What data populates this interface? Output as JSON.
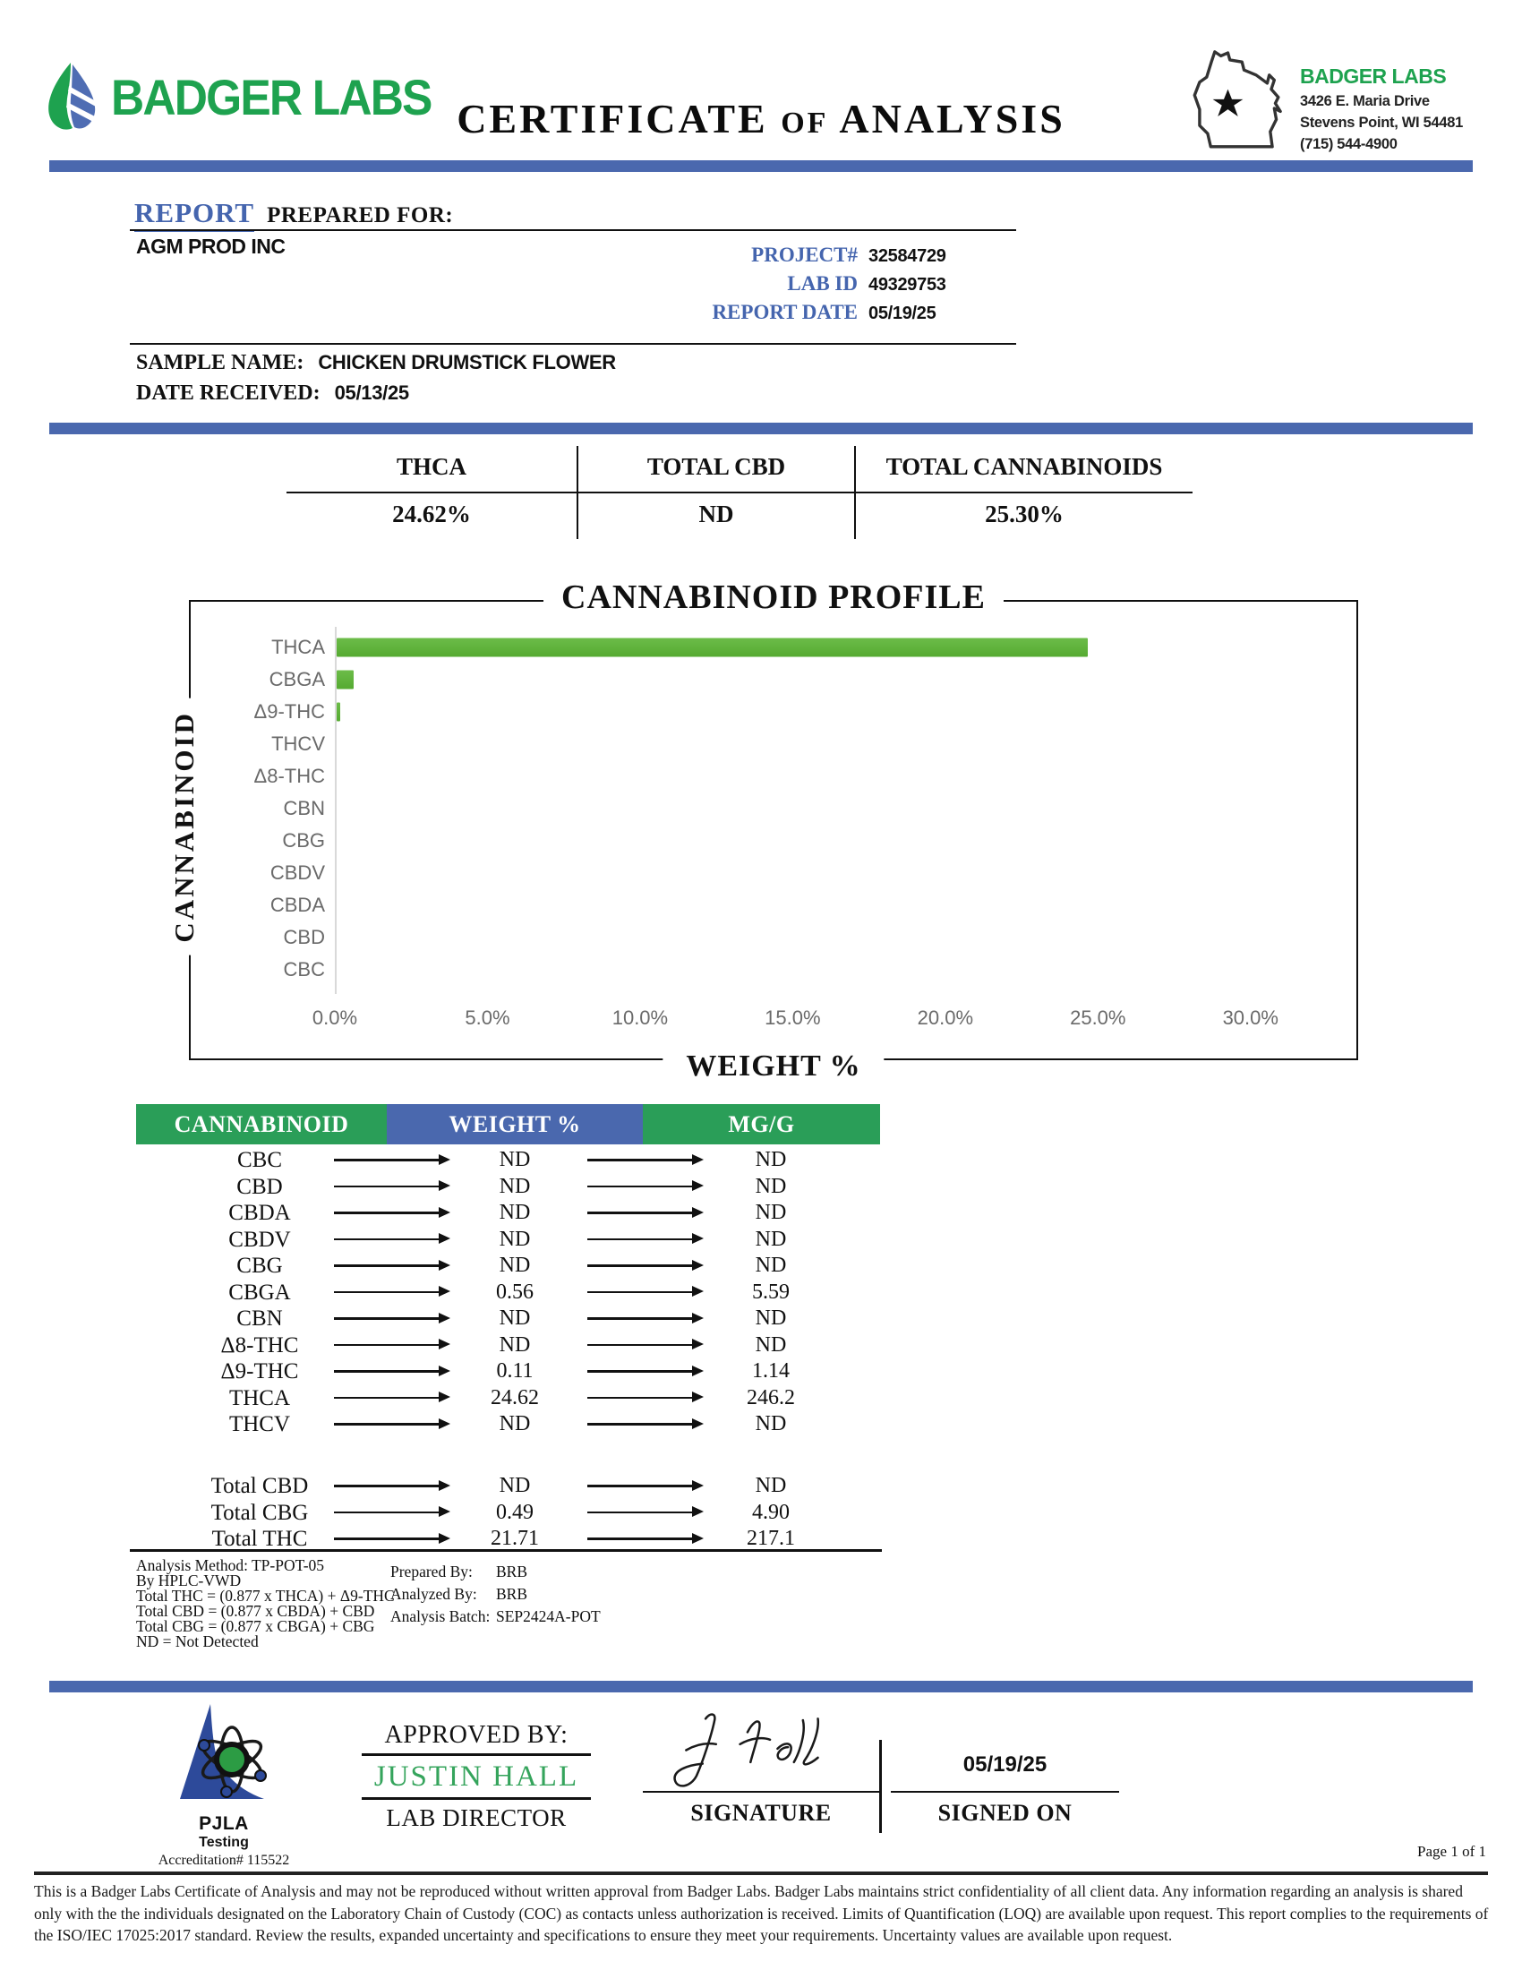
{
  "header": {
    "logo_text": "BADGER LABS",
    "title": {
      "part1": "CERTIFICATE",
      "of": "OF",
      "part2": "ANALYSIS"
    },
    "lab_info": {
      "name": "BADGER LABS",
      "address1": "3426 E. Maria Drive",
      "address2": "Stevens Point, WI 54481",
      "phone": "(715) 544-4900"
    }
  },
  "report": {
    "title_word": "REPORT",
    "prepared_for_label": "PREPARED FOR:",
    "client": "AGM PROD INC",
    "project_label": "PROJECT#",
    "project_value": "32584729",
    "lab_id_label": "LAB ID",
    "lab_id_value": "49329753",
    "report_date_label": "REPORT DATE",
    "report_date_value": "05/19/25",
    "sample_name_label": "SAMPLE NAME:",
    "sample_name_value": "CHICKEN DRUMSTICK FLOWER",
    "date_received_label": "DATE RECEIVED:",
    "date_received_value": "05/13/25"
  },
  "summary": {
    "columns": [
      {
        "label": "THCA",
        "value": "24.62%"
      },
      {
        "label": "TOTAL CBD",
        "value": "ND"
      },
      {
        "label": "TOTAL CANNABINOIDS",
        "value": "25.30%"
      }
    ]
  },
  "chart_data": {
    "type": "bar",
    "orientation": "horizontal",
    "title": "CANNABINOID PROFILE",
    "xlabel": "WEIGHT %",
    "ylabel": "CANNABINOID",
    "categories": [
      "THCA",
      "CBGA",
      "Δ9-THC",
      "THCV",
      "Δ8-THC",
      "CBN",
      "CBG",
      "CBDV",
      "CBDA",
      "CBD",
      "CBC"
    ],
    "values": [
      24.62,
      0.56,
      0.11,
      0,
      0,
      0,
      0,
      0,
      0,
      0,
      0
    ],
    "x_ticks": [
      "0.0%",
      "5.0%",
      "10.0%",
      "15.0%",
      "20.0%",
      "25.0%",
      "30.0%"
    ],
    "x_tick_values": [
      0,
      5,
      10,
      15,
      20,
      25,
      30
    ],
    "xlim": [
      0,
      32.5
    ],
    "grid": false,
    "legend": false,
    "bar_color": "#56ab35"
  },
  "results_table": {
    "headers": [
      "CANNABINOID",
      "WEIGHT %",
      "MG/G"
    ],
    "rows": [
      {
        "name": "CBC",
        "weight": "ND",
        "mgg": "ND"
      },
      {
        "name": "CBD",
        "weight": "ND",
        "mgg": "ND"
      },
      {
        "name": "CBDA",
        "weight": "ND",
        "mgg": "ND"
      },
      {
        "name": "CBDV",
        "weight": "ND",
        "mgg": "ND"
      },
      {
        "name": "CBG",
        "weight": "ND",
        "mgg": "ND"
      },
      {
        "name": "CBGA",
        "weight": "0.56",
        "mgg": "5.59"
      },
      {
        "name": "CBN",
        "weight": "ND",
        "mgg": "ND"
      },
      {
        "name": "Δ8-THC",
        "weight": "ND",
        "mgg": "ND"
      },
      {
        "name": "Δ9-THC",
        "weight": "0.11",
        "mgg": "1.14"
      },
      {
        "name": "THCA",
        "weight": "24.62",
        "mgg": "246.2"
      },
      {
        "name": "THCV",
        "weight": "ND",
        "mgg": "ND"
      }
    ],
    "totals": [
      {
        "name": "Total CBD",
        "weight": "ND",
        "mgg": "ND"
      },
      {
        "name": "Total CBG",
        "weight": "0.49",
        "mgg": "4.90"
      },
      {
        "name": "Total THC",
        "weight": "21.71",
        "mgg": "217.1"
      }
    ]
  },
  "footnotes": {
    "left": [
      "Analysis Method: TP-POT-05",
      "By HPLC-VWD",
      "Total THC = (0.877 x  THCA) + Δ9-THC",
      "Total CBD = (0.877 x  CBDA) + CBD",
      "Total CBG = (0.877 x  CBGA) + CBG",
      "ND = Not Detected"
    ],
    "right": [
      {
        "label": "Prepared By:",
        "value": "BRB"
      },
      {
        "label": "Analyzed By:",
        "value": "BRB"
      },
      {
        "label": "Analysis Batch:",
        "value": "SEP2424A-POT"
      }
    ]
  },
  "approval": {
    "pjla_name": "PJLA",
    "pjla_sub": "Testing",
    "pjla_accreditation": "Accreditation# 115522",
    "approved_by_label": "APPROVED BY:",
    "approver": "JUSTIN HALL",
    "approver_title": "LAB DIRECTOR",
    "signature_label": "SIGNATURE",
    "signed_on_label": "SIGNED ON",
    "signed_date": "05/19/25"
  },
  "footer": {
    "page": "Page 1 of 1",
    "disclaimer": "This is a Badger Labs Certificate of  Analysis and may not be reproduced without written approval from Badger Labs. Badger Labs maintains strict confidentiality of  all client data. Any information regarding an analysis is shared only with the the individuals designated on the Laboratory Chain of  Custody (COC) as contacts unless authorization is received. Limits of  Quantification (LOQ) are available upon request. This report complies to the requirements of  the ISO/IEC 17025:2017 standard. Review the results, expanded uncertainty and specifications to ensure they meet your requirements. Uncertainty values are available upon request."
  },
  "colors": {
    "accent_blue": "#4a68ae",
    "brand_green": "#1ea24f",
    "table_green": "#2a9e58",
    "bar_green": "#56ab35",
    "approver_green": "#35a45c"
  }
}
